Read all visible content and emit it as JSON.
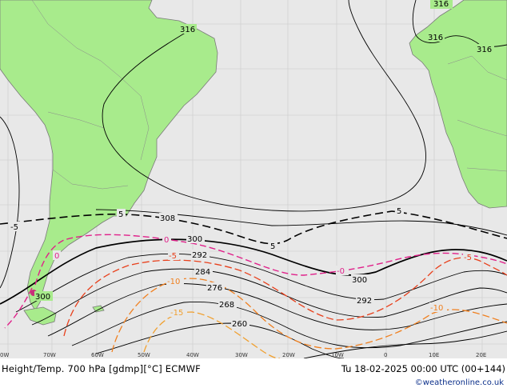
{
  "map": {
    "title": "Height/Temp. 700 hPa [gdmp][°C] ECMWF",
    "valid_time": "Tu 18-02-2025 00:00 UTC (00+144)",
    "credit": "©weatheronline.co.uk",
    "colors": {
      "ocean": "#e8e8e8",
      "land": "#a8eb8c",
      "coast": "#7a7a7a",
      "height_contour": "#000000",
      "temp_positive": "#000000",
      "temp_zero": "#e0208a",
      "temp_neg5": "#e8401c",
      "temp_neg10": "#f08020",
      "temp_neg15": "#f0a030"
    },
    "longitude_ticks": [
      "0W",
      "70W",
      "60W",
      "50W",
      "40W",
      "30W",
      "20W",
      "10W",
      "0",
      "10E",
      "20E"
    ],
    "height_labels": [
      "316",
      "316",
      "316",
      "316",
      "308",
      "300",
      "300",
      "300",
      "292",
      "292",
      "284",
      "276",
      "268",
      "260"
    ],
    "temperature_labels": [
      "5",
      "5",
      "5",
      "-5",
      "0",
      "-0",
      "-5",
      "-5",
      "-10",
      "-10",
      "-15",
      "0"
    ]
  }
}
